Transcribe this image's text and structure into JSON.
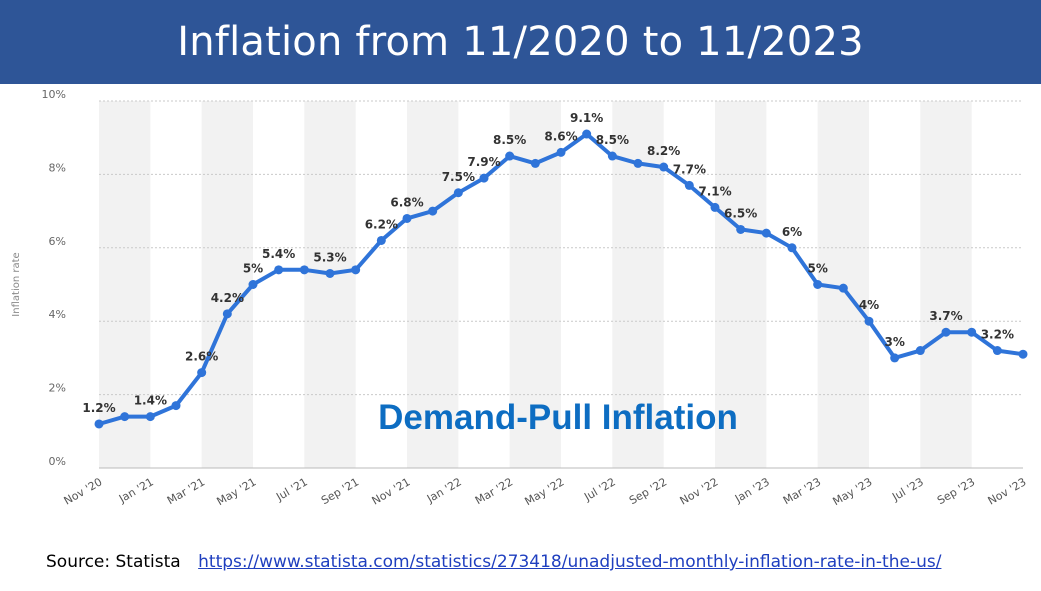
{
  "slide": {
    "title": "Inflation from 11/2020 to 11/2023",
    "source_label": "Source: Statista",
    "source_url": "https://www.statista.com/statistics/273418/unadjusted-monthly-inflation-rate-in-the-us/"
  },
  "colors": {
    "title_bg": "#2e5597",
    "line": "#2f74d9",
    "annotation": "#0d6dc2",
    "band": "#f2f2f2"
  },
  "chart_data": {
    "type": "line",
    "title": "",
    "xlabel": "",
    "ylabel": "Inflation rate",
    "ylim": [
      0,
      10
    ],
    "yticks": [
      "0%",
      "2%",
      "4%",
      "6%",
      "8%",
      "10%"
    ],
    "x": [
      "Nov '20",
      "Dec '20",
      "Jan '21",
      "Feb '21",
      "Mar '21",
      "Apr '21",
      "May '21",
      "Jun '21",
      "Jul '21",
      "Aug '21",
      "Sep '21",
      "Oct '21",
      "Nov '21",
      "Dec '21",
      "Jan '22",
      "Feb '22",
      "Mar '22",
      "Apr '22",
      "May '22",
      "Jun '22",
      "Jul '22",
      "Aug '22",
      "Sep '22",
      "Oct '22",
      "Nov '22",
      "Dec '22",
      "Jan '23",
      "Feb '23",
      "Mar '23",
      "Apr '23",
      "May '23",
      "Jun '23",
      "Jul '23",
      "Aug '23",
      "Sep '23",
      "Oct '23",
      "Nov '23"
    ],
    "xtick_labels": [
      "Nov '20",
      "Jan '21",
      "Mar '21",
      "May '21",
      "Jul '21",
      "Sep '21",
      "Nov '21",
      "Jan '22",
      "Mar '22",
      "May '22",
      "Jul '22",
      "Sep '22",
      "Nov '22",
      "Jan '23",
      "Mar '23",
      "May '23",
      "Jul '23",
      "Sep '23",
      "Nov '23"
    ],
    "series": [
      {
        "name": "Inflation rate",
        "values": [
          1.2,
          1.4,
          1.4,
          1.7,
          2.6,
          4.2,
          5.0,
          5.4,
          5.4,
          5.3,
          5.4,
          6.2,
          6.8,
          7.0,
          7.5,
          7.9,
          8.5,
          8.3,
          8.6,
          9.1,
          8.5,
          8.3,
          8.2,
          7.7,
          7.1,
          6.5,
          6.4,
          6.0,
          5.0,
          4.9,
          4.0,
          3.0,
          3.2,
          3.7,
          3.7,
          3.2,
          3.1
        ]
      }
    ],
    "data_labels": [
      {
        "i": 0,
        "text": "1.2%"
      },
      {
        "i": 2,
        "text": "1.4%"
      },
      {
        "i": 4,
        "text": "2.6%"
      },
      {
        "i": 5,
        "text": "4.2%"
      },
      {
        "i": 6,
        "text": "5%"
      },
      {
        "i": 7,
        "text": "5.4%"
      },
      {
        "i": 9,
        "text": "5.3%"
      },
      {
        "i": 11,
        "text": "6.2%"
      },
      {
        "i": 12,
        "text": "6.8%"
      },
      {
        "i": 14,
        "text": "7.5%"
      },
      {
        "i": 15,
        "text": "7.9%"
      },
      {
        "i": 16,
        "text": "8.5%"
      },
      {
        "i": 18,
        "text": "8.6%"
      },
      {
        "i": 19,
        "text": "9.1%"
      },
      {
        "i": 20,
        "text": "8.5%"
      },
      {
        "i": 22,
        "text": "8.2%"
      },
      {
        "i": 23,
        "text": "7.7%"
      },
      {
        "i": 24,
        "text": "7.1%"
      },
      {
        "i": 25,
        "text": "6.5%"
      },
      {
        "i": 27,
        "text": "6%"
      },
      {
        "i": 28,
        "text": "5%"
      },
      {
        "i": 30,
        "text": "4%"
      },
      {
        "i": 31,
        "text": "3%"
      },
      {
        "i": 33,
        "text": "3.7%"
      },
      {
        "i": 35,
        "text": "3.2%"
      }
    ],
    "annotations": [
      {
        "text": "Demand-Pull Inflation"
      }
    ],
    "grid": true,
    "legend": "none"
  }
}
